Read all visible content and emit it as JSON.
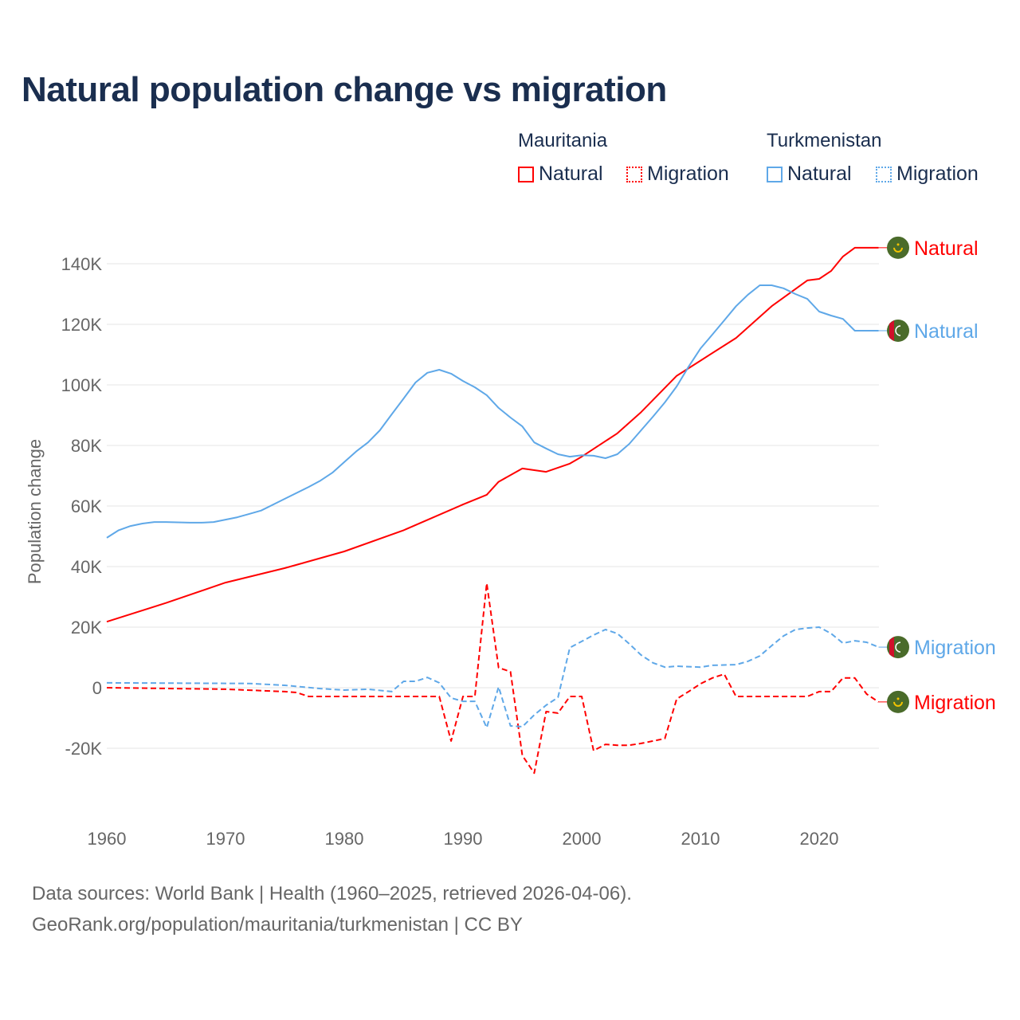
{
  "title": "Natural population change vs migration",
  "legend": {
    "groups": [
      {
        "country": "Mauritania",
        "items": [
          "Natural",
          "Migration"
        ]
      },
      {
        "country": "Turkmenistan",
        "items": [
          "Natural",
          "Migration"
        ]
      }
    ]
  },
  "footer": {
    "line1": "Data sources: World Bank | Health (1960–2025, retrieved 2026-04-06).",
    "line2": "GeoRank.org/population/mauritania/turkmenistan | CC BY"
  },
  "colors": {
    "mauritania": "#ff0000",
    "turkmenistan": "#5fa8e8",
    "flag_green": "#4a6b2a",
    "flag_yellow": "#f5c400",
    "flag_red": "#d0102a"
  },
  "chart_data": {
    "type": "line",
    "title": "Natural population change vs migration",
    "xlabel": "",
    "ylabel": "Population change",
    "xlim": [
      1960,
      2025
    ],
    "ylim": [
      -30000,
      150000
    ],
    "x_ticks": [
      "1960",
      "1970",
      "1980",
      "1990",
      "2000",
      "2010",
      "2020"
    ],
    "y_ticks": [
      {
        "value": 140000,
        "label": "140K"
      },
      {
        "value": 120000,
        "label": "120K"
      },
      {
        "value": 100000,
        "label": "100K"
      },
      {
        "value": 80000,
        "label": "80K"
      },
      {
        "value": 60000,
        "label": "60K"
      },
      {
        "value": 40000,
        "label": "40K"
      },
      {
        "value": 20000,
        "label": "20K"
      },
      {
        "value": 0,
        "label": "0"
      },
      {
        "value": -20000,
        "label": "-20K"
      }
    ],
    "grid": true,
    "series": [
      {
        "name": "Natural",
        "country": "Mauritania",
        "style": "solid",
        "color": "#ff0000",
        "end_label": "Natural",
        "points": [
          [
            1960,
            21800
          ],
          [
            1965,
            28000
          ],
          [
            1970,
            34700
          ],
          [
            1975,
            39500
          ],
          [
            1980,
            45000
          ],
          [
            1985,
            52000
          ],
          [
            1990,
            60500
          ],
          [
            1992,
            63700
          ],
          [
            1993,
            68000
          ],
          [
            1995,
            72400
          ],
          [
            1997,
            71300
          ],
          [
            1999,
            74000
          ],
          [
            2000,
            76300
          ],
          [
            2003,
            84000
          ],
          [
            2005,
            91000
          ],
          [
            2008,
            103000
          ],
          [
            2010,
            108000
          ],
          [
            2013,
            115500
          ],
          [
            2016,
            126000
          ],
          [
            2019,
            134500
          ],
          [
            2020,
            135000
          ],
          [
            2021,
            137600
          ],
          [
            2022,
            142400
          ],
          [
            2023,
            145300
          ],
          [
            2025,
            145300
          ]
        ]
      },
      {
        "name": "Migration",
        "country": "Mauritania",
        "style": "dashed",
        "color": "#ff0000",
        "end_label": "Migration",
        "points": [
          [
            1960,
            0
          ],
          [
            1970,
            -500
          ],
          [
            1975,
            -1300
          ],
          [
            1976,
            -1600
          ],
          [
            1977,
            -2900
          ],
          [
            1988,
            -2900
          ],
          [
            1989,
            -17600
          ],
          [
            1990,
            -2900
          ],
          [
            1991,
            -2900
          ],
          [
            1992,
            34500
          ],
          [
            1993,
            6600
          ],
          [
            1994,
            5300
          ],
          [
            1995,
            -22400
          ],
          [
            1996,
            -28200
          ],
          [
            1997,
            -7900
          ],
          [
            1998,
            -8400
          ],
          [
            1999,
            -2900
          ],
          [
            2000,
            -2900
          ],
          [
            2001,
            -20800
          ],
          [
            2002,
            -18700
          ],
          [
            2003,
            -19000
          ],
          [
            2004,
            -19000
          ],
          [
            2005,
            -18400
          ],
          [
            2006,
            -17600
          ],
          [
            2007,
            -16800
          ],
          [
            2008,
            -3700
          ],
          [
            2009,
            -1300
          ],
          [
            2010,
            1300
          ],
          [
            2011,
            3200
          ],
          [
            2012,
            4500
          ],
          [
            2013,
            -2900
          ],
          [
            2019,
            -2900
          ],
          [
            2020,
            -1300
          ],
          [
            2021,
            -1300
          ],
          [
            2022,
            3200
          ],
          [
            2023,
            3200
          ],
          [
            2024,
            -2100
          ],
          [
            2025,
            -4700
          ]
        ]
      },
      {
        "name": "Natural",
        "country": "Turkmenistan",
        "style": "solid",
        "color": "#5fa8e8",
        "end_label": "Natural",
        "points": [
          [
            1960,
            49500
          ],
          [
            1961,
            52000
          ],
          [
            1962,
            53400
          ],
          [
            1963,
            54200
          ],
          [
            1964,
            54700
          ],
          [
            1965,
            54700
          ],
          [
            1967,
            54500
          ],
          [
            1968,
            54500
          ],
          [
            1969,
            54700
          ],
          [
            1970,
            55500
          ],
          [
            1971,
            56300
          ],
          [
            1972,
            57400
          ],
          [
            1973,
            58500
          ],
          [
            1975,
            62400
          ],
          [
            1977,
            66300
          ],
          [
            1978,
            68400
          ],
          [
            1979,
            71000
          ],
          [
            1980,
            74500
          ],
          [
            1981,
            78000
          ],
          [
            1982,
            81000
          ],
          [
            1983,
            85000
          ],
          [
            1984,
            90300
          ],
          [
            1985,
            95500
          ],
          [
            1986,
            100800
          ],
          [
            1987,
            104000
          ],
          [
            1988,
            105000
          ],
          [
            1989,
            103700
          ],
          [
            1990,
            101300
          ],
          [
            1991,
            99200
          ],
          [
            1992,
            96600
          ],
          [
            1993,
            92400
          ],
          [
            1994,
            89200
          ],
          [
            1995,
            86300
          ],
          [
            1996,
            81000
          ],
          [
            1997,
            79000
          ],
          [
            1998,
            77100
          ],
          [
            1999,
            76300
          ],
          [
            2000,
            76800
          ],
          [
            2001,
            76600
          ],
          [
            2002,
            75800
          ],
          [
            2003,
            77100
          ],
          [
            2004,
            80500
          ],
          [
            2005,
            85000
          ],
          [
            2006,
            89500
          ],
          [
            2007,
            94200
          ],
          [
            2008,
            99500
          ],
          [
            2009,
            106000
          ],
          [
            2010,
            112000
          ],
          [
            2011,
            116600
          ],
          [
            2012,
            121300
          ],
          [
            2013,
            126000
          ],
          [
            2014,
            129800
          ],
          [
            2015,
            132900
          ],
          [
            2016,
            132900
          ],
          [
            2017,
            131900
          ],
          [
            2018,
            130000
          ],
          [
            2019,
            128400
          ],
          [
            2020,
            124200
          ],
          [
            2021,
            122900
          ],
          [
            2022,
            121800
          ],
          [
            2023,
            117900
          ],
          [
            2025,
            117900
          ]
        ]
      },
      {
        "name": "Migration",
        "country": "Turkmenistan",
        "style": "dashed",
        "color": "#5fa8e8",
        "end_label": "Migration",
        "points": [
          [
            1960,
            1600
          ],
          [
            1972,
            1400
          ],
          [
            1975,
            800
          ],
          [
            1978,
            -300
          ],
          [
            1980,
            -800
          ],
          [
            1982,
            -500
          ],
          [
            1984,
            -1300
          ],
          [
            1985,
            2100
          ],
          [
            1986,
            2100
          ],
          [
            1987,
            3400
          ],
          [
            1988,
            1600
          ],
          [
            1989,
            -3400
          ],
          [
            1990,
            -4500
          ],
          [
            1991,
            -4500
          ],
          [
            1992,
            -13200
          ],
          [
            1993,
            300
          ],
          [
            1994,
            -12600
          ],
          [
            1995,
            -12900
          ],
          [
            1996,
            -9000
          ],
          [
            1997,
            -5800
          ],
          [
            1998,
            -3200
          ],
          [
            1999,
            13200
          ],
          [
            2000,
            15300
          ],
          [
            2001,
            17400
          ],
          [
            2002,
            19200
          ],
          [
            2003,
            17900
          ],
          [
            2004,
            14500
          ],
          [
            2005,
            10800
          ],
          [
            2006,
            8200
          ],
          [
            2007,
            6800
          ],
          [
            2008,
            7100
          ],
          [
            2010,
            6800
          ],
          [
            2011,
            7400
          ],
          [
            2013,
            7600
          ],
          [
            2014,
            8700
          ],
          [
            2015,
            10500
          ],
          [
            2016,
            13900
          ],
          [
            2017,
            17100
          ],
          [
            2018,
            19200
          ],
          [
            2019,
            19700
          ],
          [
            2020,
            20000
          ],
          [
            2021,
            17900
          ],
          [
            2022,
            14700
          ],
          [
            2023,
            15500
          ],
          [
            2024,
            15000
          ],
          [
            2025,
            13400
          ]
        ]
      }
    ]
  }
}
